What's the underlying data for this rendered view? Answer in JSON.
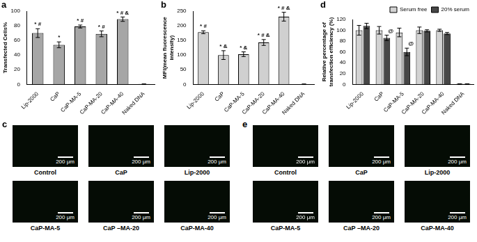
{
  "chart_data": [
    {
      "panel_label": "a",
      "type": "bar",
      "ylabel": "Transfected Cells%",
      "categories": [
        "Lip-2000",
        "CaP",
        "CaP-MA-5",
        "CaP-MA-20",
        "CaP-MA-40",
        "Naked DNA"
      ],
      "values": [
        70,
        54,
        79,
        69,
        89,
        0.5
      ],
      "errors": [
        6,
        4,
        2,
        4,
        3,
        0
      ],
      "color": "#a6a6a6",
      "ylim": [
        0,
        100
      ],
      "yticks": [
        0,
        20,
        40,
        60,
        80,
        100
      ],
      "grid": false,
      "annotations": [
        {
          "category": "Lip-2000",
          "text": "* #"
        },
        {
          "category": "CaP",
          "text": "*"
        },
        {
          "category": "CaP-MA-5",
          "text": "* #"
        },
        {
          "category": "CaP-MA-20",
          "text": "* #"
        },
        {
          "category": "CaP-MA-40",
          "text": "* # &"
        }
      ]
    },
    {
      "panel_label": "b",
      "type": "bar",
      "ylabel": "MFI(mean fluorescence intensity)",
      "categories": [
        "Lip-2000",
        "CaP",
        "CaP-MA-5",
        "CaP-MA-20",
        "CaP-MA-40",
        "Naked DNA"
      ],
      "values": [
        178,
        100,
        103,
        143,
        231,
        1
      ],
      "errors": [
        5,
        15,
        8,
        10,
        15,
        0
      ],
      "color": "#d0d0d0",
      "ylim": [
        0,
        250
      ],
      "yticks": [
        0,
        50,
        100,
        150,
        200,
        250
      ],
      "grid": false,
      "annotations": [
        {
          "category": "Lip-2000",
          "text": "* #"
        },
        {
          "category": "CaP",
          "text": "* &"
        },
        {
          "category": "CaP-MA-5",
          "text": "* &"
        },
        {
          "category": "CaP-MA-20",
          "text": "* # &"
        },
        {
          "category": "CaP-MA-40",
          "text": "* # &"
        }
      ]
    },
    {
      "panel_label": "d",
      "type": "bar",
      "ylabel": "Relative percentage of transfection efficiency (%)",
      "categories": [
        "Lip-2000",
        "CaP",
        "CaP-MA-5",
        "CaP-MA-20",
        "CaP-MA-40",
        "Naked DNA"
      ],
      "series": [
        {
          "name": "Serum free",
          "color": "#d3d3d3",
          "values": [
            100,
            100,
            96,
            100,
            100,
            1
          ],
          "errors": [
            9,
            7,
            8,
            6,
            2,
            0
          ]
        },
        {
          "name": "20% serum",
          "color": "#474747",
          "values": [
            108,
            86,
            60,
            99,
            94,
            1
          ],
          "errors": [
            5,
            5,
            7,
            2,
            2,
            0
          ]
        }
      ],
      "ylim": [
        0,
        120
      ],
      "yticks": [
        0,
        20,
        40,
        60,
        80,
        100,
        120
      ],
      "grid": false,
      "legend": "top",
      "annotations": [
        {
          "category": "CaP",
          "series": "20% serum",
          "text": "@"
        },
        {
          "category": "CaP-MA-5",
          "series": "20% serum",
          "text": "@"
        }
      ]
    }
  ],
  "image_panels": [
    {
      "panel_label": "c",
      "images": [
        {
          "label": "Control",
          "scale_bar": "200 μm"
        },
        {
          "label": "CaP",
          "scale_bar": "200 μm"
        },
        {
          "label": "Lip-2000",
          "scale_bar": "200 μm"
        },
        {
          "label": "CaP-MA-5",
          "scale_bar": "200 μm"
        },
        {
          "label": "CaP –MA-20",
          "scale_bar": "200 μm"
        },
        {
          "label": "CaP-MA-40",
          "scale_bar": "200 μm"
        }
      ]
    },
    {
      "panel_label": "e",
      "images": [
        {
          "label": "Control",
          "scale_bar": "200 μm"
        },
        {
          "label": "CaP",
          "scale_bar": "200 μm"
        },
        {
          "label": "Lip-2000",
          "scale_bar": "200 μm"
        },
        {
          "label": "CaP-MA-5",
          "scale_bar": "200 μm"
        },
        {
          "label": "CaP –MA-20",
          "scale_bar": "200 μm"
        },
        {
          "label": "CaP-MA-40",
          "scale_bar": "200 μm"
        }
      ]
    }
  ]
}
